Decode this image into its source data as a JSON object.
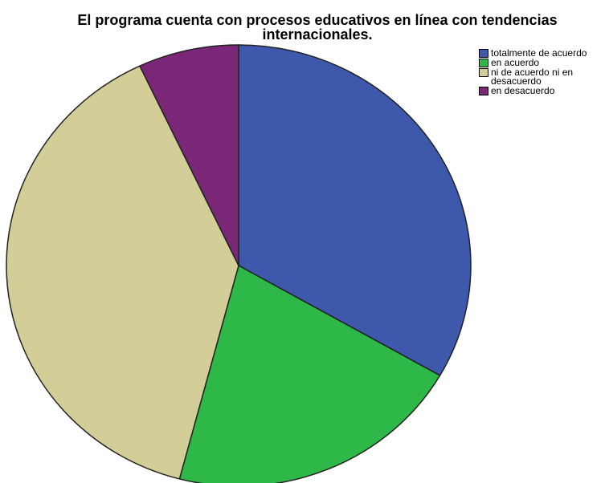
{
  "chart_data": {
    "type": "pie",
    "title": "El programa cuenta con procesos educativos en línea con tendencias internacionales.",
    "title_lines": [
      "El programa cuenta con procesos educativos en línea con tendencias",
      "internacionales."
    ],
    "categories": [
      "totalmente de acuerdo",
      "en acuerdo",
      "ni de acuerdo ni en desacuerdo",
      "en desacuerdo"
    ],
    "values": [
      33.3,
      20.8,
      38.9,
      7.0
    ],
    "colors": [
      "#3e58ac",
      "#2db847",
      "#d3ce97",
      "#7b2778"
    ],
    "legend_position": "top-right"
  }
}
